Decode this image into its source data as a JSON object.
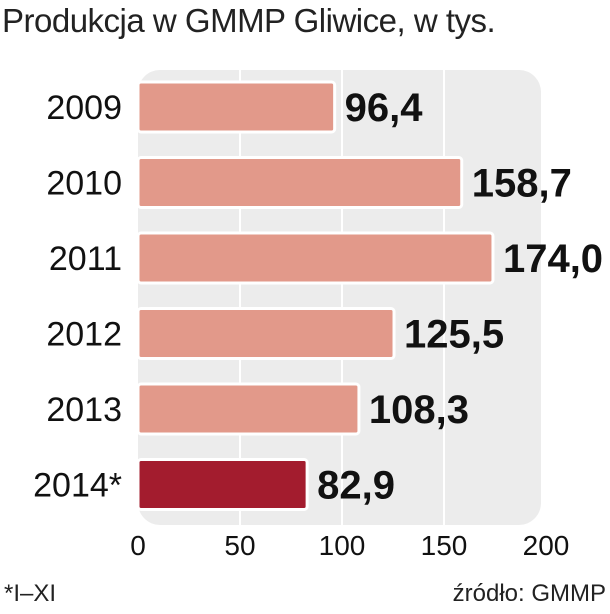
{
  "title": "Produkcja w GMMP Gliwice, w tys.",
  "footnote": "*I–XI",
  "source": "źródło: GMMP",
  "colors": {
    "bar": "#e2998a",
    "bar_highlight": "#a31c2e",
    "plot_bg": "#ececec",
    "grid": "#ffffff"
  },
  "chart_data": {
    "type": "bar",
    "orientation": "horizontal",
    "title": "Produkcja w GMMP Gliwice, w tys.",
    "categories": [
      "2009",
      "2010",
      "2011",
      "2012",
      "2013",
      "2014*"
    ],
    "values": [
      96.4,
      158.7,
      174.0,
      125.5,
      108.3,
      82.9
    ],
    "value_labels": [
      "96,4",
      "158,7",
      "174,0",
      "125,5",
      "108,3",
      "82,9"
    ],
    "highlight_index": 5,
    "xlim": [
      0,
      200
    ],
    "xticks": [
      0,
      50,
      100,
      150,
      200
    ],
    "grid": true,
    "xlabel": "",
    "ylabel": ""
  }
}
